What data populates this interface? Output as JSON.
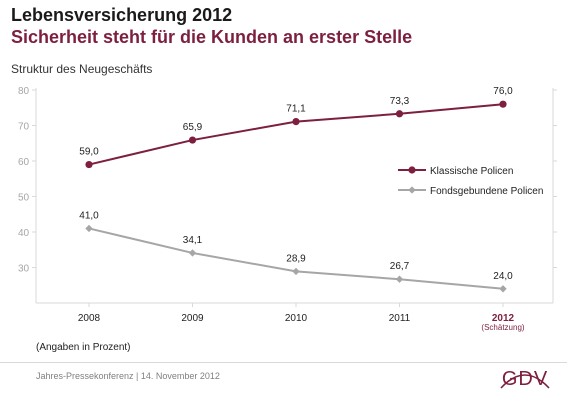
{
  "header": {
    "title": "Lebensversicherung 2012",
    "subtitle": "Sicherheit steht für die Kunden an erster Stelle"
  },
  "chart_label": "Struktur des Neugeschäfts",
  "footnote": "(Angaben in Prozent)",
  "footer": {
    "text": "Jahres-Pressekonferenz | 14. November 2012",
    "logo": "GDV"
  },
  "colors": {
    "klassisch": "#7d1f3f",
    "fonds": "#a6a6a6",
    "axis": "#d9d9d9"
  },
  "chart_data": {
    "type": "line",
    "categories": [
      "2008",
      "2009",
      "2010",
      "2011",
      "2012"
    ],
    "category_note": {
      "2012": "(Schätzung)"
    },
    "highlight_category": "2012",
    "series": [
      {
        "name": "Klassische Policen",
        "values": [
          59.0,
          65.9,
          71.1,
          73.3,
          76.0
        ],
        "labels": [
          "59,0",
          "65,9",
          "71,1",
          "73,3",
          "76,0"
        ],
        "color": "#7d1f3f"
      },
      {
        "name": "Fondsgebundene Policen",
        "values": [
          41.0,
          34.1,
          28.9,
          26.7,
          24.0
        ],
        "labels": [
          "41,0",
          "34,1",
          "28,9",
          "26,7",
          "24,0"
        ],
        "color": "#a6a6a6"
      }
    ],
    "ylim": [
      20,
      80
    ],
    "yticks": [
      30,
      40,
      50,
      60,
      70,
      80
    ],
    "legend_position": "right",
    "grid": false
  }
}
